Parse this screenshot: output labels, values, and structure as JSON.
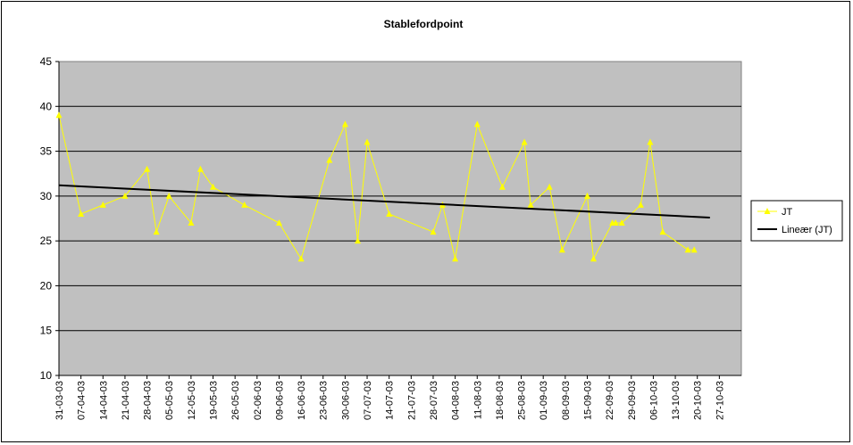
{
  "chart_data": {
    "type": "line",
    "title": "Stablefordpoint",
    "xlabel": "",
    "ylabel": "",
    "ylim": [
      10,
      45
    ],
    "y_ticks": [
      10,
      15,
      20,
      25,
      30,
      35,
      40,
      45
    ],
    "x_tick_labels": [
      "31-03-03",
      "07-04-03",
      "14-04-03",
      "21-04-03",
      "28-04-03",
      "05-05-03",
      "12-05-03",
      "19-05-03",
      "26-05-03",
      "02-06-03",
      "09-06-03",
      "16-06-03",
      "23-06-03",
      "30-06-03",
      "07-07-03",
      "14-07-03",
      "21-07-03",
      "28-07-03",
      "04-08-03",
      "11-08-03",
      "18-08-03",
      "25-08-03",
      "01-09-03",
      "08-09-03",
      "15-09-03",
      "22-09-03",
      "29-09-03",
      "06-10-03",
      "13-10-03",
      "20-10-03",
      "27-10-03"
    ],
    "x_range": [
      "31-03-03",
      "03-11-03"
    ],
    "grid": "horizontal",
    "plot_background": "#c0c0c0",
    "legend_position": "right",
    "series": [
      {
        "name": "JT",
        "color": "#ffff00",
        "marker": "triangle",
        "points": [
          {
            "x": "31-03-03",
            "y": 39
          },
          {
            "x": "07-04-03",
            "y": 28
          },
          {
            "x": "14-04-03",
            "y": 29
          },
          {
            "x": "21-04-03",
            "y": 30
          },
          {
            "x": "28-04-03",
            "y": 33
          },
          {
            "x": "01-05-03",
            "y": 26
          },
          {
            "x": "05-05-03",
            "y": 30
          },
          {
            "x": "12-05-03",
            "y": 27
          },
          {
            "x": "15-05-03",
            "y": 33
          },
          {
            "x": "19-05-03",
            "y": 31
          },
          {
            "x": "29-05-03",
            "y": 29
          },
          {
            "x": "09-06-03",
            "y": 27
          },
          {
            "x": "16-06-03",
            "y": 23
          },
          {
            "x": "25-06-03",
            "y": 34
          },
          {
            "x": "30-06-03",
            "y": 38
          },
          {
            "x": "04-07-03",
            "y": 25
          },
          {
            "x": "07-07-03",
            "y": 36
          },
          {
            "x": "14-07-03",
            "y": 28
          },
          {
            "x": "28-07-03",
            "y": 26
          },
          {
            "x": "31-07-03",
            "y": 29
          },
          {
            "x": "04-08-03",
            "y": 23
          },
          {
            "x": "11-08-03",
            "y": 38
          },
          {
            "x": "19-08-03",
            "y": 31
          },
          {
            "x": "26-08-03",
            "y": 36
          },
          {
            "x": "28-08-03",
            "y": 29
          },
          {
            "x": "03-09-03",
            "y": 31
          },
          {
            "x": "07-09-03",
            "y": 24
          },
          {
            "x": "15-09-03",
            "y": 30
          },
          {
            "x": "17-09-03",
            "y": 23
          },
          {
            "x": "23-09-03",
            "y": 27
          },
          {
            "x": "24-09-03",
            "y": 27
          },
          {
            "x": "26-09-03",
            "y": 27
          },
          {
            "x": "02-10-03",
            "y": 29
          },
          {
            "x": "05-10-03",
            "y": 36
          },
          {
            "x": "09-10-03",
            "y": 26
          },
          {
            "x": "17-10-03",
            "y": 24
          },
          {
            "x": "19-10-03",
            "y": 24
          }
        ]
      },
      {
        "name": "Lineær (JT)",
        "color": "#000000",
        "marker": "none",
        "points": [
          {
            "x": "31-03-03",
            "y": 31.2
          },
          {
            "x": "24-10-03",
            "y": 27.6
          }
        ]
      }
    ]
  }
}
